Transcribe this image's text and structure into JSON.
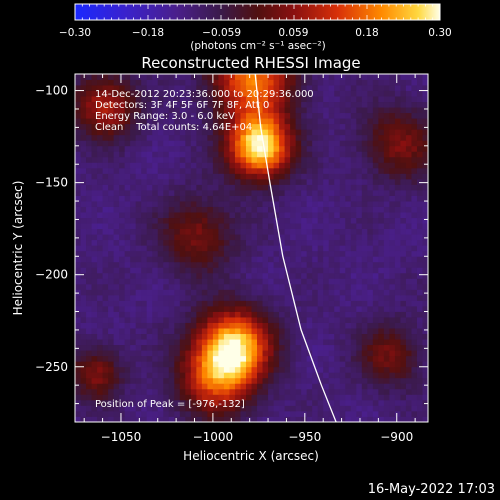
{
  "chart_data": {
    "type": "heatmap",
    "title": "Reconstructed RHESSI Image",
    "xlabel": "Heliocentric X (arcsec)",
    "ylabel": "Heliocentric Y (arcsec)",
    "xlim": [
      -1075,
      -883
    ],
    "ylim": [
      -280,
      -91
    ],
    "x_ticks": [
      -1050,
      -1000,
      -950,
      -900
    ],
    "x_tick_labels": [
      "−1050",
      "−1000",
      "−950",
      "−900"
    ],
    "y_ticks": [
      -100,
      -150,
      -200,
      -250
    ],
    "y_tick_labels": [
      "−100",
      "−150",
      "−200",
      "−250"
    ],
    "colorbar": {
      "range": [
        -0.3,
        0.3
      ],
      "ticks": [
        -0.3,
        -0.18,
        -0.059,
        0.059,
        0.18,
        0.3
      ],
      "tick_labels": [
        "−0.30",
        "−0.18",
        "−0.059",
        "0.059",
        "0.18",
        "0.30"
      ],
      "unit_label": "(photons cm⁻² s⁻¹ asec⁻²)"
    },
    "sources": [
      {
        "x": -976,
        "y": -132,
        "peak": 0.3,
        "sigma": 12
      },
      {
        "x": -980,
        "y": -95,
        "peak": 0.18,
        "sigma": 16
      },
      {
        "x": -990,
        "y": -240,
        "peak": 0.25,
        "sigma": 14
      },
      {
        "x": -1000,
        "y": -258,
        "peak": 0.12,
        "sigma": 14
      },
      {
        "x": -1060,
        "y": -110,
        "peak": 0.1,
        "sigma": 12
      },
      {
        "x": -1065,
        "y": -255,
        "peak": 0.05,
        "sigma": 10
      },
      {
        "x": -1010,
        "y": -180,
        "peak": 0.04,
        "sigma": 14
      },
      {
        "x": -900,
        "y": -130,
        "peak": 0.04,
        "sigma": 14
      },
      {
        "x": -905,
        "y": -245,
        "peak": 0.03,
        "sigma": 12
      }
    ],
    "background_level": -0.11,
    "limb": [
      [
        -977,
        -91
      ],
      [
        -974,
        -120
      ],
      [
        -969,
        -150
      ],
      [
        -962,
        -190
      ],
      [
        -952,
        -230
      ],
      [
        -941,
        -260
      ],
      [
        -933,
        -280
      ]
    ],
    "annotations": {
      "time_range": "14-Dec-2012 20:23:36.000 to 20:29:36.000",
      "detectors": "Detectors: 3F 4F 5F 6F 7F 8F, Att 0",
      "energy": "Energy Range: 3.0 - 6.0 keV",
      "clean": "Clean    Total counts: 4.64E+04",
      "peak": "Position of Peak = [-976,-132]"
    },
    "footer_date": "16-May-2022 17:03"
  }
}
